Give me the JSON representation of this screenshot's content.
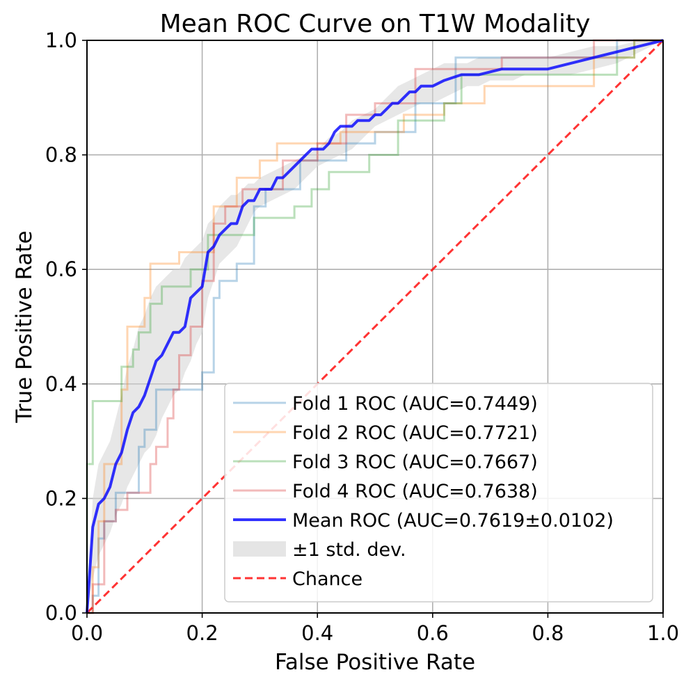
{
  "chart_data": {
    "type": "line",
    "title": "Mean ROC Curve on T1W Modality",
    "xlabel": "False Positive Rate",
    "ylabel": "True Positive Rate",
    "xlim": [
      0.0,
      1.0
    ],
    "ylim": [
      0.0,
      1.0
    ],
    "xticks": [
      0.0,
      0.2,
      0.4,
      0.6,
      0.8,
      1.0
    ],
    "yticks": [
      0.0,
      0.2,
      0.4,
      0.6,
      0.8,
      1.0
    ],
    "xtick_labels": [
      "0.0",
      "0.2",
      "0.4",
      "0.6",
      "0.8",
      "1.0"
    ],
    "ytick_labels": [
      "0.0",
      "0.2",
      "0.4",
      "0.6",
      "0.8",
      "1.0"
    ],
    "grid": true,
    "legend_position": "lower-right",
    "series": [
      {
        "name": "Fold 1 ROC (AUC=0.7449)",
        "color": "#1f77b4",
        "step": true,
        "points": [
          [
            0,
            0
          ],
          [
            0.01,
            0
          ],
          [
            0.01,
            0.03
          ],
          [
            0.02,
            0.03
          ],
          [
            0.02,
            0.13
          ],
          [
            0.03,
            0.13
          ],
          [
            0.03,
            0.16
          ],
          [
            0.05,
            0.16
          ],
          [
            0.05,
            0.21
          ],
          [
            0.09,
            0.21
          ],
          [
            0.09,
            0.29
          ],
          [
            0.1,
            0.29
          ],
          [
            0.1,
            0.32
          ],
          [
            0.12,
            0.32
          ],
          [
            0.12,
            0.39
          ],
          [
            0.2,
            0.39
          ],
          [
            0.2,
            0.42
          ],
          [
            0.22,
            0.42
          ],
          [
            0.22,
            0.55
          ],
          [
            0.23,
            0.55
          ],
          [
            0.23,
            0.58
          ],
          [
            0.26,
            0.58
          ],
          [
            0.26,
            0.61
          ],
          [
            0.29,
            0.61
          ],
          [
            0.29,
            0.71
          ],
          [
            0.31,
            0.71
          ],
          [
            0.31,
            0.74
          ],
          [
            0.37,
            0.74
          ],
          [
            0.37,
            0.79
          ],
          [
            0.45,
            0.79
          ],
          [
            0.45,
            0.82
          ],
          [
            0.5,
            0.82
          ],
          [
            0.5,
            0.84
          ],
          [
            0.57,
            0.84
          ],
          [
            0.57,
            0.89
          ],
          [
            0.64,
            0.89
          ],
          [
            0.64,
            0.97
          ],
          [
            0.92,
            0.97
          ],
          [
            0.92,
            1.0
          ],
          [
            1.0,
            1.0
          ]
        ]
      },
      {
        "name": "Fold 2 ROC (AUC=0.7721)",
        "color": "#ff7f0e",
        "step": true,
        "points": [
          [
            0,
            0
          ],
          [
            0.01,
            0
          ],
          [
            0.01,
            0.08
          ],
          [
            0.02,
            0.08
          ],
          [
            0.02,
            0.16
          ],
          [
            0.03,
            0.16
          ],
          [
            0.03,
            0.26
          ],
          [
            0.06,
            0.26
          ],
          [
            0.06,
            0.39
          ],
          [
            0.07,
            0.39
          ],
          [
            0.07,
            0.5
          ],
          [
            0.1,
            0.5
          ],
          [
            0.1,
            0.55
          ],
          [
            0.11,
            0.55
          ],
          [
            0.11,
            0.61
          ],
          [
            0.16,
            0.61
          ],
          [
            0.16,
            0.63
          ],
          [
            0.22,
            0.63
          ],
          [
            0.22,
            0.71
          ],
          [
            0.26,
            0.71
          ],
          [
            0.26,
            0.76
          ],
          [
            0.3,
            0.76
          ],
          [
            0.3,
            0.79
          ],
          [
            0.33,
            0.79
          ],
          [
            0.33,
            0.82
          ],
          [
            0.44,
            0.82
          ],
          [
            0.44,
            0.84
          ],
          [
            0.55,
            0.84
          ],
          [
            0.55,
            0.87
          ],
          [
            0.62,
            0.87
          ],
          [
            0.62,
            0.89
          ],
          [
            0.69,
            0.89
          ],
          [
            0.69,
            0.92
          ],
          [
            0.79,
            0.92
          ],
          [
            0.79,
            0.92
          ],
          [
            0.88,
            0.92
          ],
          [
            0.88,
            0.97
          ],
          [
            0.95,
            0.97
          ],
          [
            0.95,
            1.0
          ],
          [
            1.0,
            1.0
          ]
        ]
      },
      {
        "name": "Fold 3 ROC (AUC=0.7667)",
        "color": "#2ca02c",
        "step": true,
        "points": [
          [
            0,
            0
          ],
          [
            0.0,
            0.26
          ],
          [
            0.01,
            0.26
          ],
          [
            0.01,
            0.37
          ],
          [
            0.06,
            0.37
          ],
          [
            0.06,
            0.43
          ],
          [
            0.08,
            0.43
          ],
          [
            0.08,
            0.46
          ],
          [
            0.09,
            0.46
          ],
          [
            0.09,
            0.49
          ],
          [
            0.11,
            0.49
          ],
          [
            0.11,
            0.54
          ],
          [
            0.13,
            0.54
          ],
          [
            0.13,
            0.57
          ],
          [
            0.18,
            0.57
          ],
          [
            0.18,
            0.6
          ],
          [
            0.21,
            0.6
          ],
          [
            0.21,
            0.66
          ],
          [
            0.29,
            0.66
          ],
          [
            0.29,
            0.69
          ],
          [
            0.36,
            0.69
          ],
          [
            0.36,
            0.71
          ],
          [
            0.39,
            0.71
          ],
          [
            0.39,
            0.74
          ],
          [
            0.42,
            0.74
          ],
          [
            0.42,
            0.77
          ],
          [
            0.49,
            0.77
          ],
          [
            0.49,
            0.8
          ],
          [
            0.54,
            0.8
          ],
          [
            0.54,
            0.86
          ],
          [
            0.62,
            0.86
          ],
          [
            0.62,
            0.89
          ],
          [
            0.65,
            0.89
          ],
          [
            0.65,
            0.94
          ],
          [
            0.92,
            0.94
          ],
          [
            0.92,
            0.97
          ],
          [
            0.95,
            0.97
          ],
          [
            0.95,
            1.0
          ],
          [
            1.0,
            1.0
          ]
        ]
      },
      {
        "name": "Fold 4 ROC (AUC=0.7638)",
        "color": "#d62728",
        "step": true,
        "points": [
          [
            0,
            0
          ],
          [
            0.01,
            0
          ],
          [
            0.01,
            0.05
          ],
          [
            0.03,
            0.05
          ],
          [
            0.03,
            0.16
          ],
          [
            0.05,
            0.16
          ],
          [
            0.05,
            0.18
          ],
          [
            0.07,
            0.18
          ],
          [
            0.07,
            0.21
          ],
          [
            0.11,
            0.21
          ],
          [
            0.11,
            0.26
          ],
          [
            0.12,
            0.26
          ],
          [
            0.12,
            0.29
          ],
          [
            0.14,
            0.29
          ],
          [
            0.14,
            0.34
          ],
          [
            0.15,
            0.34
          ],
          [
            0.15,
            0.39
          ],
          [
            0.16,
            0.39
          ],
          [
            0.16,
            0.45
          ],
          [
            0.18,
            0.45
          ],
          [
            0.18,
            0.5
          ],
          [
            0.2,
            0.5
          ],
          [
            0.2,
            0.58
          ],
          [
            0.22,
            0.58
          ],
          [
            0.22,
            0.68
          ],
          [
            0.24,
            0.68
          ],
          [
            0.24,
            0.71
          ],
          [
            0.27,
            0.71
          ],
          [
            0.27,
            0.74
          ],
          [
            0.34,
            0.74
          ],
          [
            0.34,
            0.79
          ],
          [
            0.4,
            0.79
          ],
          [
            0.4,
            0.82
          ],
          [
            0.45,
            0.82
          ],
          [
            0.45,
            0.87
          ],
          [
            0.5,
            0.87
          ],
          [
            0.5,
            0.89
          ],
          [
            0.57,
            0.89
          ],
          [
            0.57,
            0.95
          ],
          [
            0.72,
            0.95
          ],
          [
            0.72,
            0.97
          ],
          [
            0.88,
            0.97
          ],
          [
            0.88,
            1.0
          ],
          [
            1.0,
            1.0
          ]
        ]
      },
      {
        "name": "Mean ROC (AUC=0.7619±0.0102)",
        "color": "#0000ff",
        "points": [
          [
            0,
            0
          ],
          [
            0.01,
            0.15
          ],
          [
            0.02,
            0.19
          ],
          [
            0.03,
            0.2
          ],
          [
            0.04,
            0.22
          ],
          [
            0.05,
            0.26
          ],
          [
            0.06,
            0.28
          ],
          [
            0.07,
            0.32
          ],
          [
            0.08,
            0.35
          ],
          [
            0.09,
            0.36
          ],
          [
            0.1,
            0.38
          ],
          [
            0.11,
            0.41
          ],
          [
            0.12,
            0.44
          ],
          [
            0.13,
            0.45
          ],
          [
            0.14,
            0.47
          ],
          [
            0.15,
            0.49
          ],
          [
            0.16,
            0.49
          ],
          [
            0.17,
            0.5
          ],
          [
            0.18,
            0.55
          ],
          [
            0.19,
            0.56
          ],
          [
            0.2,
            0.57
          ],
          [
            0.21,
            0.63
          ],
          [
            0.22,
            0.64
          ],
          [
            0.23,
            0.66
          ],
          [
            0.24,
            0.67
          ],
          [
            0.25,
            0.68
          ],
          [
            0.26,
            0.68
          ],
          [
            0.27,
            0.71
          ],
          [
            0.28,
            0.72
          ],
          [
            0.29,
            0.72
          ],
          [
            0.3,
            0.74
          ],
          [
            0.31,
            0.74
          ],
          [
            0.32,
            0.74
          ],
          [
            0.33,
            0.76
          ],
          [
            0.34,
            0.76
          ],
          [
            0.35,
            0.77
          ],
          [
            0.36,
            0.78
          ],
          [
            0.37,
            0.79
          ],
          [
            0.38,
            0.8
          ],
          [
            0.39,
            0.81
          ],
          [
            0.4,
            0.81
          ],
          [
            0.41,
            0.81
          ],
          [
            0.42,
            0.82
          ],
          [
            0.43,
            0.84
          ],
          [
            0.44,
            0.85
          ],
          [
            0.45,
            0.85
          ],
          [
            0.46,
            0.85
          ],
          [
            0.47,
            0.86
          ],
          [
            0.48,
            0.86
          ],
          [
            0.49,
            0.86
          ],
          [
            0.5,
            0.87
          ],
          [
            0.51,
            0.87
          ],
          [
            0.52,
            0.88
          ],
          [
            0.53,
            0.89
          ],
          [
            0.54,
            0.89
          ],
          [
            0.55,
            0.9
          ],
          [
            0.56,
            0.91
          ],
          [
            0.57,
            0.91
          ],
          [
            0.58,
            0.92
          ],
          [
            0.59,
            0.92
          ],
          [
            0.6,
            0.92
          ],
          [
            0.62,
            0.93
          ],
          [
            0.65,
            0.94
          ],
          [
            0.68,
            0.94
          ],
          [
            0.72,
            0.95
          ],
          [
            0.76,
            0.95
          ],
          [
            0.8,
            0.95
          ],
          [
            0.84,
            0.96
          ],
          [
            0.88,
            0.97
          ],
          [
            0.92,
            0.98
          ],
          [
            0.96,
            0.99
          ],
          [
            1.0,
            1.0
          ]
        ]
      },
      {
        "name": "±1 std. dev.",
        "color": "#d3d3d3",
        "type": "band",
        "x": [
          0,
          0.01,
          0.02,
          0.03,
          0.04,
          0.05,
          0.06,
          0.07,
          0.08,
          0.09,
          0.1,
          0.11,
          0.12,
          0.13,
          0.14,
          0.15,
          0.16,
          0.17,
          0.18,
          0.19,
          0.2,
          0.21,
          0.22,
          0.23,
          0.24,
          0.25,
          0.26,
          0.27,
          0.28,
          0.29,
          0.3,
          0.32,
          0.34,
          0.36,
          0.38,
          0.4,
          0.42,
          0.44,
          0.46,
          0.48,
          0.5,
          0.52,
          0.54,
          0.56,
          0.58,
          0.6,
          0.62,
          0.64,
          0.66,
          0.68,
          0.7,
          0.72,
          0.74,
          0.76,
          0.78,
          0.8,
          0.84,
          0.88,
          0.92,
          0.96,
          1.0
        ],
        "upper": [
          0,
          0.2,
          0.26,
          0.28,
          0.3,
          0.34,
          0.38,
          0.43,
          0.46,
          0.5,
          0.52,
          0.55,
          0.57,
          0.58,
          0.59,
          0.6,
          0.6,
          0.62,
          0.63,
          0.64,
          0.65,
          0.68,
          0.69,
          0.71,
          0.72,
          0.73,
          0.73,
          0.74,
          0.75,
          0.75,
          0.76,
          0.77,
          0.78,
          0.79,
          0.8,
          0.81,
          0.83,
          0.84,
          0.86,
          0.87,
          0.88,
          0.9,
          0.92,
          0.93,
          0.94,
          0.95,
          0.96,
          0.96,
          0.96,
          0.97,
          0.97,
          0.97,
          0.97,
          0.97,
          0.97,
          0.97,
          0.98,
          0.99,
          0.99,
          1.0,
          1.0
        ],
        "lower": [
          0,
          0.06,
          0.1,
          0.12,
          0.14,
          0.17,
          0.19,
          0.22,
          0.24,
          0.26,
          0.28,
          0.29,
          0.31,
          0.34,
          0.36,
          0.38,
          0.39,
          0.42,
          0.44,
          0.47,
          0.49,
          0.55,
          0.58,
          0.61,
          0.62,
          0.63,
          0.64,
          0.66,
          0.68,
          0.7,
          0.71,
          0.72,
          0.73,
          0.74,
          0.76,
          0.78,
          0.79,
          0.8,
          0.81,
          0.83,
          0.85,
          0.86,
          0.87,
          0.88,
          0.89,
          0.89,
          0.9,
          0.91,
          0.92,
          0.92,
          0.93,
          0.93,
          0.93,
          0.94,
          0.94,
          0.94,
          0.94,
          0.95,
          0.96,
          0.98,
          1.0
        ]
      },
      {
        "name": "Chance",
        "color": "#ff0000",
        "dashed": true,
        "points": [
          [
            0,
            0
          ],
          [
            1,
            1
          ]
        ]
      }
    ]
  }
}
